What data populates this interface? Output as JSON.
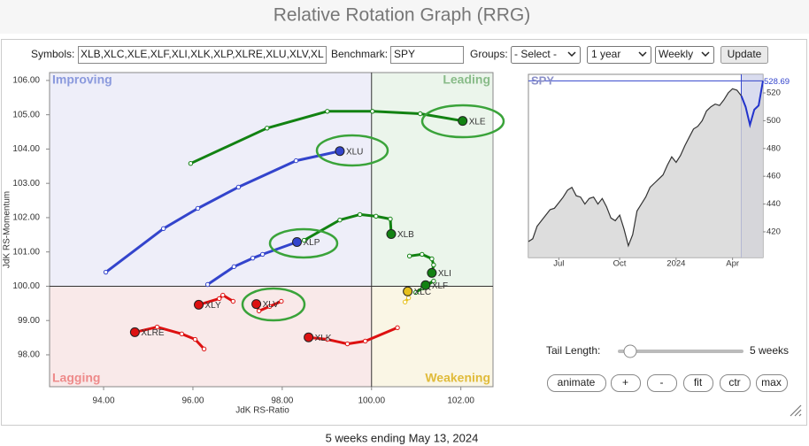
{
  "header": {
    "title": "Relative Rotation Graph (RRG)"
  },
  "controls": {
    "symbols_label": "Symbols:",
    "symbols": "XLB,XLC,XLE,XLF,XLI,XLK,XLP,XLRE,XLU,XLV,XL",
    "benchmark_label": "Benchmark:",
    "benchmark": "SPY",
    "groups_label": "Groups:",
    "groups": "- Select -",
    "period": "1 year",
    "frequency": "Weekly",
    "update": "Update"
  },
  "chart_data": [
    {
      "type": "rrg",
      "xlabel": "JdK RS-Ratio",
      "ylabel": "JdK RS-Momentum",
      "quadrants": [
        "Improving",
        "Leading",
        "Lagging",
        "Weakening"
      ],
      "xlim": [
        92.79,
        102.72
      ],
      "ylim": [
        97.07,
        106.23
      ],
      "xticks": [
        {
          "value": 94,
          "label": "94.00"
        },
        {
          "value": 96,
          "label": "96.00"
        },
        {
          "value": 98,
          "label": "98.00"
        },
        {
          "value": 100,
          "label": "100.00"
        },
        {
          "value": 102,
          "label": "102.00"
        }
      ],
      "yticks": [
        {
          "value": 98,
          "label": "98.00"
        },
        {
          "value": 99,
          "label": "99.00"
        },
        {
          "value": 100,
          "label": "100.00"
        },
        {
          "value": 101,
          "label": "101.00"
        },
        {
          "value": 102,
          "label": "102.00"
        },
        {
          "value": 103,
          "label": "103.00"
        },
        {
          "value": 104,
          "label": "104.00"
        },
        {
          "value": 105,
          "label": "105.00"
        },
        {
          "value": 106,
          "label": "106.00"
        }
      ],
      "series": [
        {
          "name": "XLE",
          "color": "#128212",
          "x": [
            95.95,
            97.66,
            99.01,
            100.02,
            101.09,
            102.04
          ],
          "values": [
            103.58,
            104.61,
            105.1,
            105.1,
            105.03,
            104.82
          ]
        },
        {
          "name": "XLU",
          "color": "#3344cc",
          "x": [
            94.05,
            95.34,
            96.11,
            97.02,
            98.31,
            99.29
          ],
          "values": [
            100.41,
            101.68,
            102.27,
            102.89,
            103.66,
            103.94
          ]
        },
        {
          "name": "XLP",
          "color": "#3344cc",
          "x": [
            96.33,
            96.92,
            97.34,
            97.56,
            98.33
          ],
          "values": [
            100.05,
            100.57,
            100.82,
            100.93,
            101.29
          ]
        },
        {
          "name": "XLB",
          "color": "#128212",
          "x": [
            98.49,
            99.29,
            99.74,
            100.1,
            100.42,
            100.44
          ],
          "values": [
            101.34,
            101.93,
            102.09,
            102.04,
            101.96,
            101.52
          ]
        },
        {
          "name": "XLI",
          "color": "#128212",
          "x": [
            100.85,
            101.13,
            101.35,
            101.39,
            101.35
          ],
          "values": [
            100.88,
            100.93,
            100.8,
            100.62,
            100.39
          ]
        },
        {
          "name": "XLF",
          "color": "#128212",
          "x": [
            100.99,
            101.15,
            101.39,
            101.21
          ],
          "values": [
            99.82,
            99.95,
            100.15,
            100.03
          ]
        },
        {
          "name": "XLC",
          "color": "#e6c01c",
          "x": [
            100.75,
            100.83,
            100.81
          ],
          "values": [
            99.54,
            99.66,
            99.85
          ]
        },
        {
          "name": "XLV",
          "color": "#dd1111",
          "x": [
            97.98,
            97.72,
            97.48,
            97.42
          ],
          "values": [
            99.56,
            99.41,
            99.28,
            99.48
          ]
        },
        {
          "name": "XLY",
          "color": "#dd1111",
          "x": [
            96.9,
            96.67,
            96.59,
            96.13
          ],
          "values": [
            99.56,
            99.74,
            99.64,
            99.46
          ]
        },
        {
          "name": "XLRE",
          "color": "#dd1111",
          "x": [
            96.25,
            96.05,
            95.75,
            95.2,
            94.7
          ],
          "values": [
            98.17,
            98.45,
            98.61,
            98.81,
            98.66
          ]
        },
        {
          "name": "XLK",
          "color": "#dd1111",
          "x": [
            100.58,
            99.86,
            99.46,
            99.01,
            98.59
          ],
          "values": [
            98.79,
            98.4,
            98.32,
            98.45,
            98.51
          ]
        }
      ]
    },
    {
      "type": "area",
      "title": "SPY",
      "color": "#333333",
      "values": [
        413,
        415,
        424,
        428,
        432,
        436,
        437,
        441,
        445,
        450,
        452,
        446,
        445,
        440,
        444,
        445,
        440,
        444,
        438,
        430,
        428,
        432,
        422,
        410,
        418,
        435,
        440,
        445,
        452,
        455,
        458,
        461,
        468,
        474,
        470,
        475,
        482,
        488,
        494,
        496,
        500,
        507,
        510,
        512,
        511,
        515,
        520,
        523,
        522,
        518,
        510,
        497,
        508,
        511,
        528.69
      ],
      "xlim": [
        0,
        54
      ],
      "xticks": [
        {
          "value": 7,
          "label": "Jul"
        },
        {
          "value": 21,
          "label": "Oct"
        },
        {
          "value": 34,
          "label": "2024"
        },
        {
          "value": 47,
          "label": "Apr"
        }
      ],
      "ylim": [
        401.5,
        533.4
      ],
      "yticks": [
        420,
        440,
        460,
        480,
        500,
        520
      ]
    }
  ],
  "tail": {
    "label": "Tail Length:",
    "value": "5 weeks"
  },
  "buttons": [
    "animate",
    "+",
    "-",
    "fit",
    "ctr",
    "max"
  ],
  "footer": "5 weeks ending May 13, 2024"
}
